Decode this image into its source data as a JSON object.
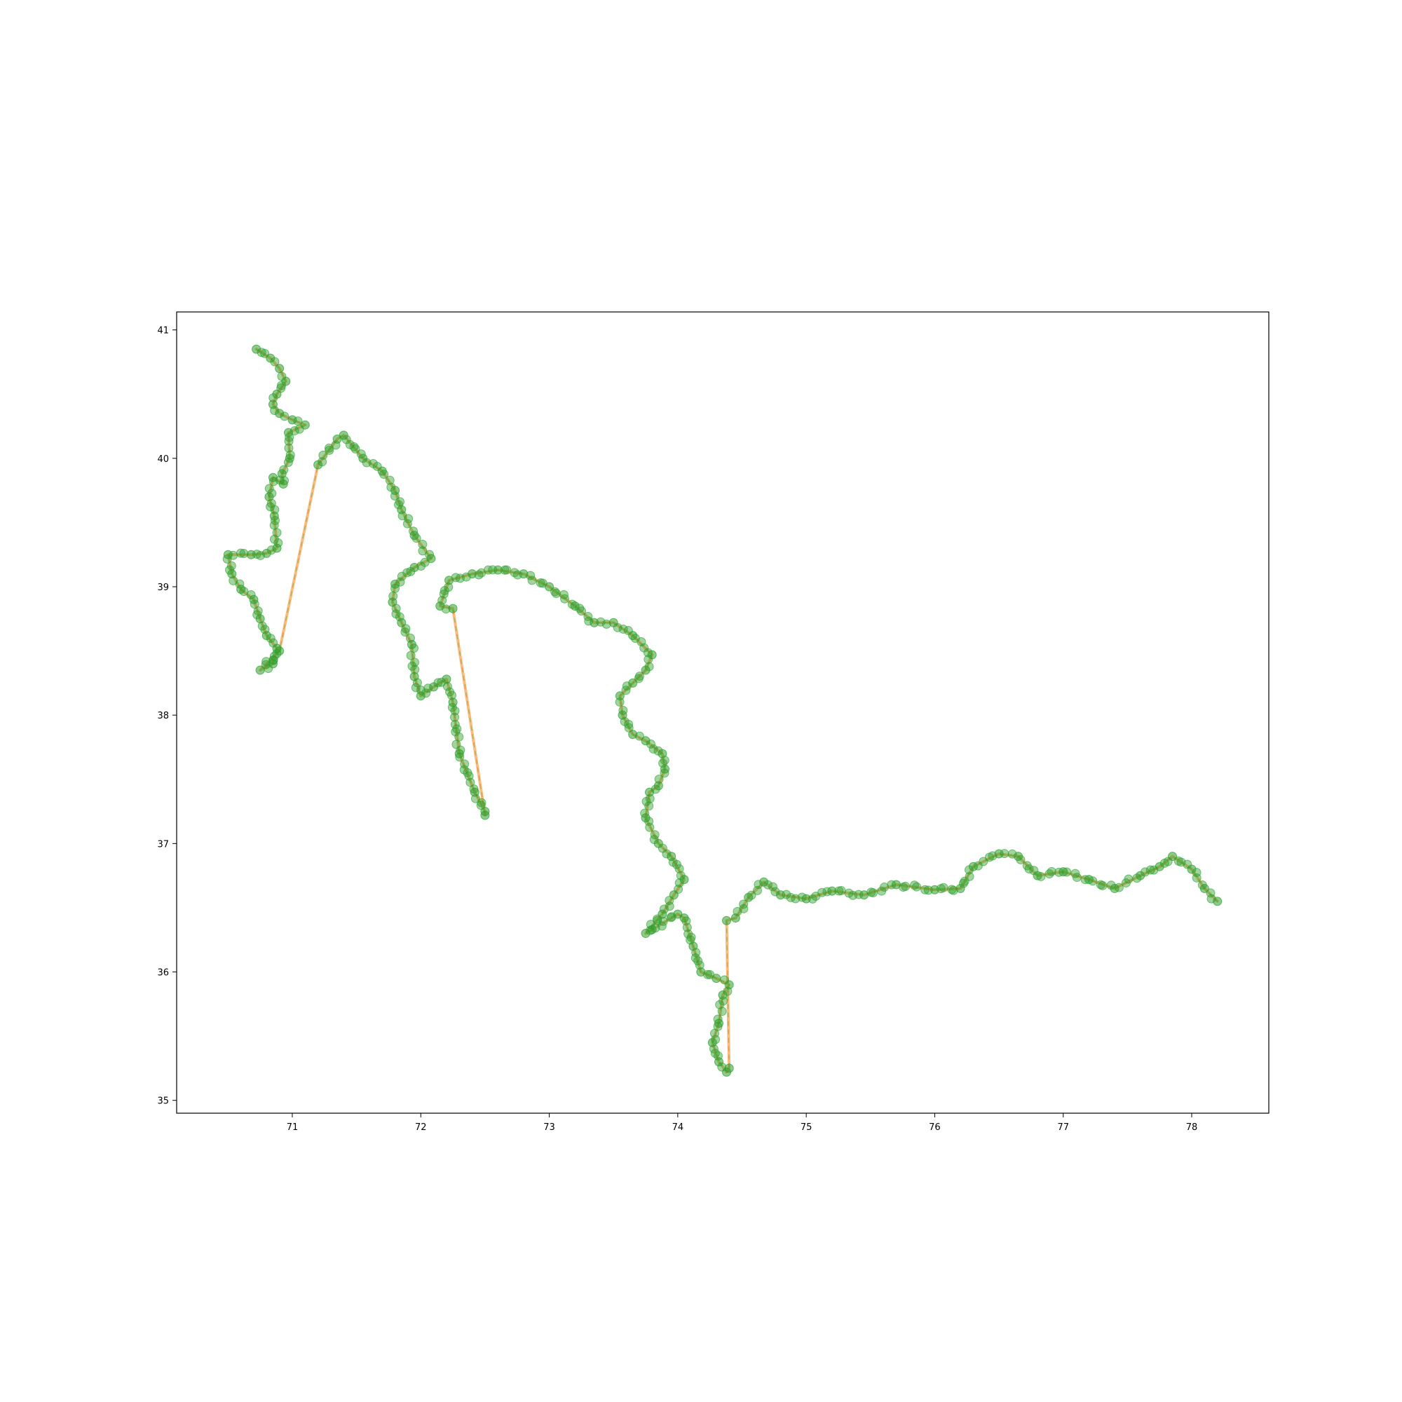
{
  "chart_data": {
    "type": "line",
    "title": "",
    "xlabel": "",
    "ylabel": "",
    "xlim": [
      70.1,
      78.6
    ],
    "ylim": [
      34.9,
      41.14
    ],
    "xticks": [
      71,
      72,
      73,
      74,
      75,
      76,
      77,
      78
    ],
    "yticks": [
      35,
      36,
      37,
      38,
      39,
      40,
      41
    ],
    "grid": false,
    "legend": "none",
    "colors": {
      "points": "#2ca02c",
      "route": "#ff7f0e",
      "dashed": "#2ca02c",
      "axes": "#000000"
    },
    "series": [
      {
        "style": "points-with-solid-and-dashed-line",
        "x": [
          70.72,
          70.83,
          70.9,
          70.95,
          70.88,
          70.85,
          70.9,
          71.0,
          71.1,
          70.97,
          70.98,
          70.92,
          70.93,
          70.85,
          70.82,
          70.86,
          70.88,
          70.8,
          70.68,
          70.5,
          70.53,
          70.6,
          70.7,
          70.75,
          70.8,
          70.88,
          70.85,
          70.75,
          70.9,
          71.2,
          71.35,
          71.4,
          71.55,
          71.7,
          71.8,
          71.85,
          71.95,
          72.08,
          71.95,
          71.8,
          71.78,
          71.85,
          71.93,
          71.95,
          72.0,
          72.1,
          72.2,
          72.25,
          72.3,
          72.42,
          72.5,
          72.5,
          72.25,
          72.15,
          72.22,
          72.4,
          72.6,
          72.8,
          73.0,
          73.2,
          73.35,
          73.5,
          73.65,
          73.8,
          73.75,
          73.65,
          73.55,
          73.57,
          73.65,
          73.75,
          73.88,
          73.9,
          73.85,
          73.78,
          73.75,
          73.85,
          73.95,
          74.05,
          73.97,
          73.88,
          73.75,
          73.8,
          74.0,
          74.05,
          74.12,
          74.18,
          74.3,
          74.4,
          74.35,
          74.32,
          74.27,
          74.32,
          74.38,
          74.4,
          74.38,
          74.45,
          74.55,
          74.67,
          74.8,
          75.0,
          75.2,
          75.45,
          75.7,
          76.0,
          76.2,
          76.3,
          76.5,
          76.65,
          76.8,
          77.0,
          77.2,
          77.4,
          77.6,
          77.75,
          77.85,
          78.0,
          78.1,
          78.2
        ],
        "y": [
          40.85,
          40.78,
          40.7,
          40.6,
          40.5,
          40.42,
          40.35,
          40.3,
          40.26,
          40.2,
          40.0,
          39.88,
          39.8,
          39.85,
          39.7,
          39.55,
          39.3,
          39.26,
          39.25,
          39.25,
          39.1,
          38.98,
          38.9,
          38.75,
          38.62,
          38.52,
          38.4,
          38.35,
          38.5,
          39.95,
          40.15,
          40.18,
          40.0,
          39.9,
          39.75,
          39.6,
          39.4,
          39.22,
          39.15,
          39.02,
          38.88,
          38.72,
          38.55,
          38.3,
          38.15,
          38.22,
          38.28,
          38.1,
          37.7,
          37.4,
          37.25,
          37.22,
          38.83,
          38.85,
          39.05,
          39.1,
          39.13,
          39.1,
          39.0,
          38.85,
          38.72,
          38.72,
          38.62,
          38.47,
          38.35,
          38.25,
          38.15,
          38.0,
          37.85,
          37.8,
          37.7,
          37.58,
          37.45,
          37.4,
          37.2,
          37.0,
          36.9,
          36.72,
          36.6,
          36.45,
          36.3,
          36.33,
          36.45,
          36.42,
          36.2,
          36.0,
          35.95,
          35.9,
          35.82,
          35.6,
          35.45,
          35.3,
          35.22,
          35.25,
          36.4,
          36.42,
          36.58,
          36.7,
          36.6,
          36.57,
          36.63,
          36.6,
          36.68,
          36.64,
          36.65,
          36.82,
          36.92,
          36.9,
          36.75,
          36.78,
          36.72,
          36.65,
          36.75,
          36.82,
          36.9,
          36.8,
          36.65,
          36.55
        ]
      }
    ]
  }
}
